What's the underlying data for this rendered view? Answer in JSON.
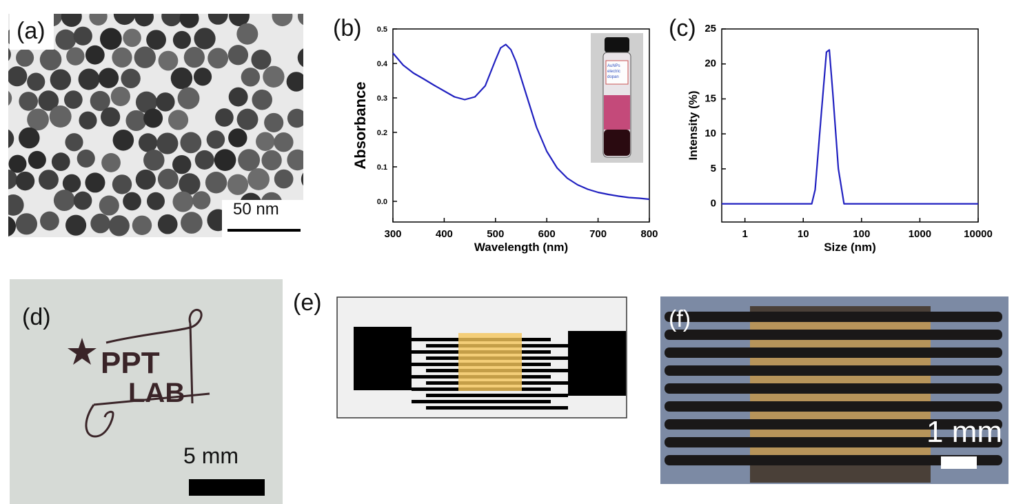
{
  "panels": {
    "a": {
      "label": "(a)",
      "scale_bar": "50 nm"
    },
    "b": {
      "label": "(b)",
      "inset_vial_text": "AuNPs electric dopan"
    },
    "c": {
      "label": "(c)"
    },
    "d": {
      "label": "(d)",
      "logo_text_1": "PPT",
      "logo_text_2": "LAB",
      "scale_bar": "5 mm"
    },
    "e": {
      "label": "(e)"
    },
    "f": {
      "label": "(f)",
      "scale_bar": "1 mm"
    }
  },
  "colors": {
    "curve": "#2020c0",
    "gold_pad": "#f5c55a",
    "electrode": "#000000",
    "substrate_f": "#7c8aa4",
    "aunp_film": "#b7945a"
  },
  "chart_data": [
    {
      "panel": "b",
      "type": "line",
      "title": "",
      "xlabel": "Wavelength (nm)",
      "ylabel": "Absorbance",
      "xlim": [
        300,
        800
      ],
      "ylim": [
        -0.06,
        0.5
      ],
      "xticks": [
        300,
        400,
        500,
        600,
        700,
        800
      ],
      "yticks": [
        0.0,
        0.1,
        0.2,
        0.3,
        0.4,
        0.5
      ],
      "xtick_labels": [
        "300",
        "400",
        "500",
        "600",
        "700",
        "800"
      ],
      "ytick_labels": [
        "0.0",
        "0.1",
        "0.2",
        "0.3",
        "0.4",
        "0.5"
      ],
      "series": [
        {
          "x": [
            300,
            320,
            340,
            360,
            380,
            400,
            420,
            440,
            460,
            480,
            500,
            510,
            520,
            530,
            540,
            560,
            580,
            600,
            620,
            640,
            660,
            680,
            700,
            720,
            740,
            760,
            780,
            800
          ],
          "y": [
            0.43,
            0.395,
            0.372,
            0.355,
            0.337,
            0.32,
            0.303,
            0.295,
            0.303,
            0.335,
            0.41,
            0.445,
            0.455,
            0.44,
            0.405,
            0.31,
            0.215,
            0.145,
            0.097,
            0.067,
            0.048,
            0.035,
            0.026,
            0.02,
            0.015,
            0.011,
            0.009,
            0.006
          ]
        }
      ]
    },
    {
      "panel": "c",
      "type": "line",
      "title": "",
      "xlabel": "Size (nm)",
      "ylabel": "Intensity (%)",
      "xscale": "log",
      "xlim": [
        0.4,
        10000
      ],
      "ylim": [
        -2.6,
        25
      ],
      "xticks": [
        1,
        10,
        100,
        1000,
        10000
      ],
      "yticks": [
        0,
        5,
        10,
        15,
        20,
        25
      ],
      "xtick_labels": [
        "1",
        "10",
        "100",
        "1000",
        "10000"
      ],
      "ytick_labels": [
        "0",
        "5",
        "10",
        "15",
        "20",
        "25"
      ],
      "series": [
        {
          "x": [
            0.4,
            1,
            10,
            14,
            16,
            20,
            25,
            28,
            32,
            40,
            50,
            100,
            1000,
            10000
          ],
          "y": [
            0,
            0,
            0,
            0,
            2,
            12,
            21.7,
            22,
            16,
            5,
            0,
            0,
            0,
            0
          ]
        }
      ]
    }
  ]
}
